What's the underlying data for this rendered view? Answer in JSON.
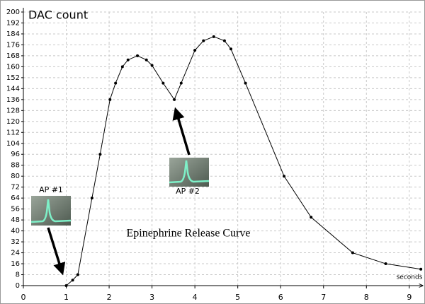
{
  "chart_data": {
    "type": "line",
    "y_label": "DAC count",
    "x_label": "seconds",
    "annotations": [
      "Epinephrine Release Curve",
      "AP #1",
      "AP #2"
    ],
    "x": [
      1.0,
      1.15,
      1.27,
      1.6,
      1.79,
      2.02,
      2.15,
      2.31,
      2.44,
      2.66,
      2.87,
      3.0,
      3.26,
      3.52,
      3.68,
      4.0,
      4.2,
      4.44,
      4.69,
      4.84,
      5.18,
      6.08,
      6.71,
      7.68,
      8.45,
      9.27
    ],
    "series": [
      {
        "name": "DAC count",
        "color": "#000000",
        "values": [
          0,
          4,
          8,
          64,
          96,
          136,
          148,
          160,
          165,
          168,
          165,
          161,
          148,
          136,
          148,
          172,
          179,
          182,
          179,
          173,
          148,
          80,
          50,
          24,
          16,
          12
        ]
      }
    ],
    "xlim": [
      0,
      9.35
    ],
    "xticks": [
      0,
      1,
      2,
      3,
      4,
      5,
      6,
      7,
      8,
      9
    ],
    "ylim": [
      0,
      200
    ],
    "yticks": [
      0,
      8,
      16,
      24,
      32,
      40,
      48,
      56,
      64,
      72,
      80,
      88,
      96,
      104,
      112,
      120,
      128,
      136,
      144,
      152,
      160,
      168,
      176,
      184,
      192,
      200
    ],
    "grid": true
  }
}
